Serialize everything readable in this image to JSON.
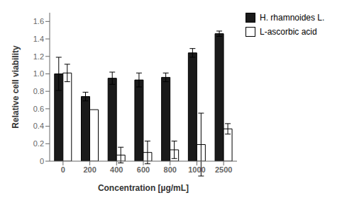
{
  "chart_data": {
    "type": "bar",
    "categories": [
      "0",
      "200",
      "400",
      "600",
      "800",
      "1000",
      "2500"
    ],
    "series": [
      {
        "name": "H. rhamnoides L.",
        "color": "#1a1a1a",
        "values": [
          1.0,
          0.74,
          0.95,
          0.93,
          0.96,
          1.24,
          1.46
        ],
        "errors": [
          0.19,
          0.05,
          0.07,
          0.08,
          0.05,
          0.05,
          0.03
        ]
      },
      {
        "name": "L-ascorbic acid",
        "color": "#ffffff",
        "values": [
          1.01,
          0.59,
          0.07,
          0.1,
          0.13,
          0.19,
          0.37
        ],
        "errors": [
          0.1,
          0.0,
          0.09,
          0.13,
          0.1,
          0.36,
          0.06
        ]
      }
    ],
    "xlabel": "Concentration [µg/mL]",
    "ylabel": "Relative cell viability",
    "ylim": [
      0,
      1.7
    ],
    "yticks": [
      0,
      0.2,
      0.4,
      0.6,
      0.8,
      {
        "value": 1.0,
        "label": "1.0"
      },
      1.2,
      1.4,
      1.6
    ],
    "legend": "right"
  }
}
